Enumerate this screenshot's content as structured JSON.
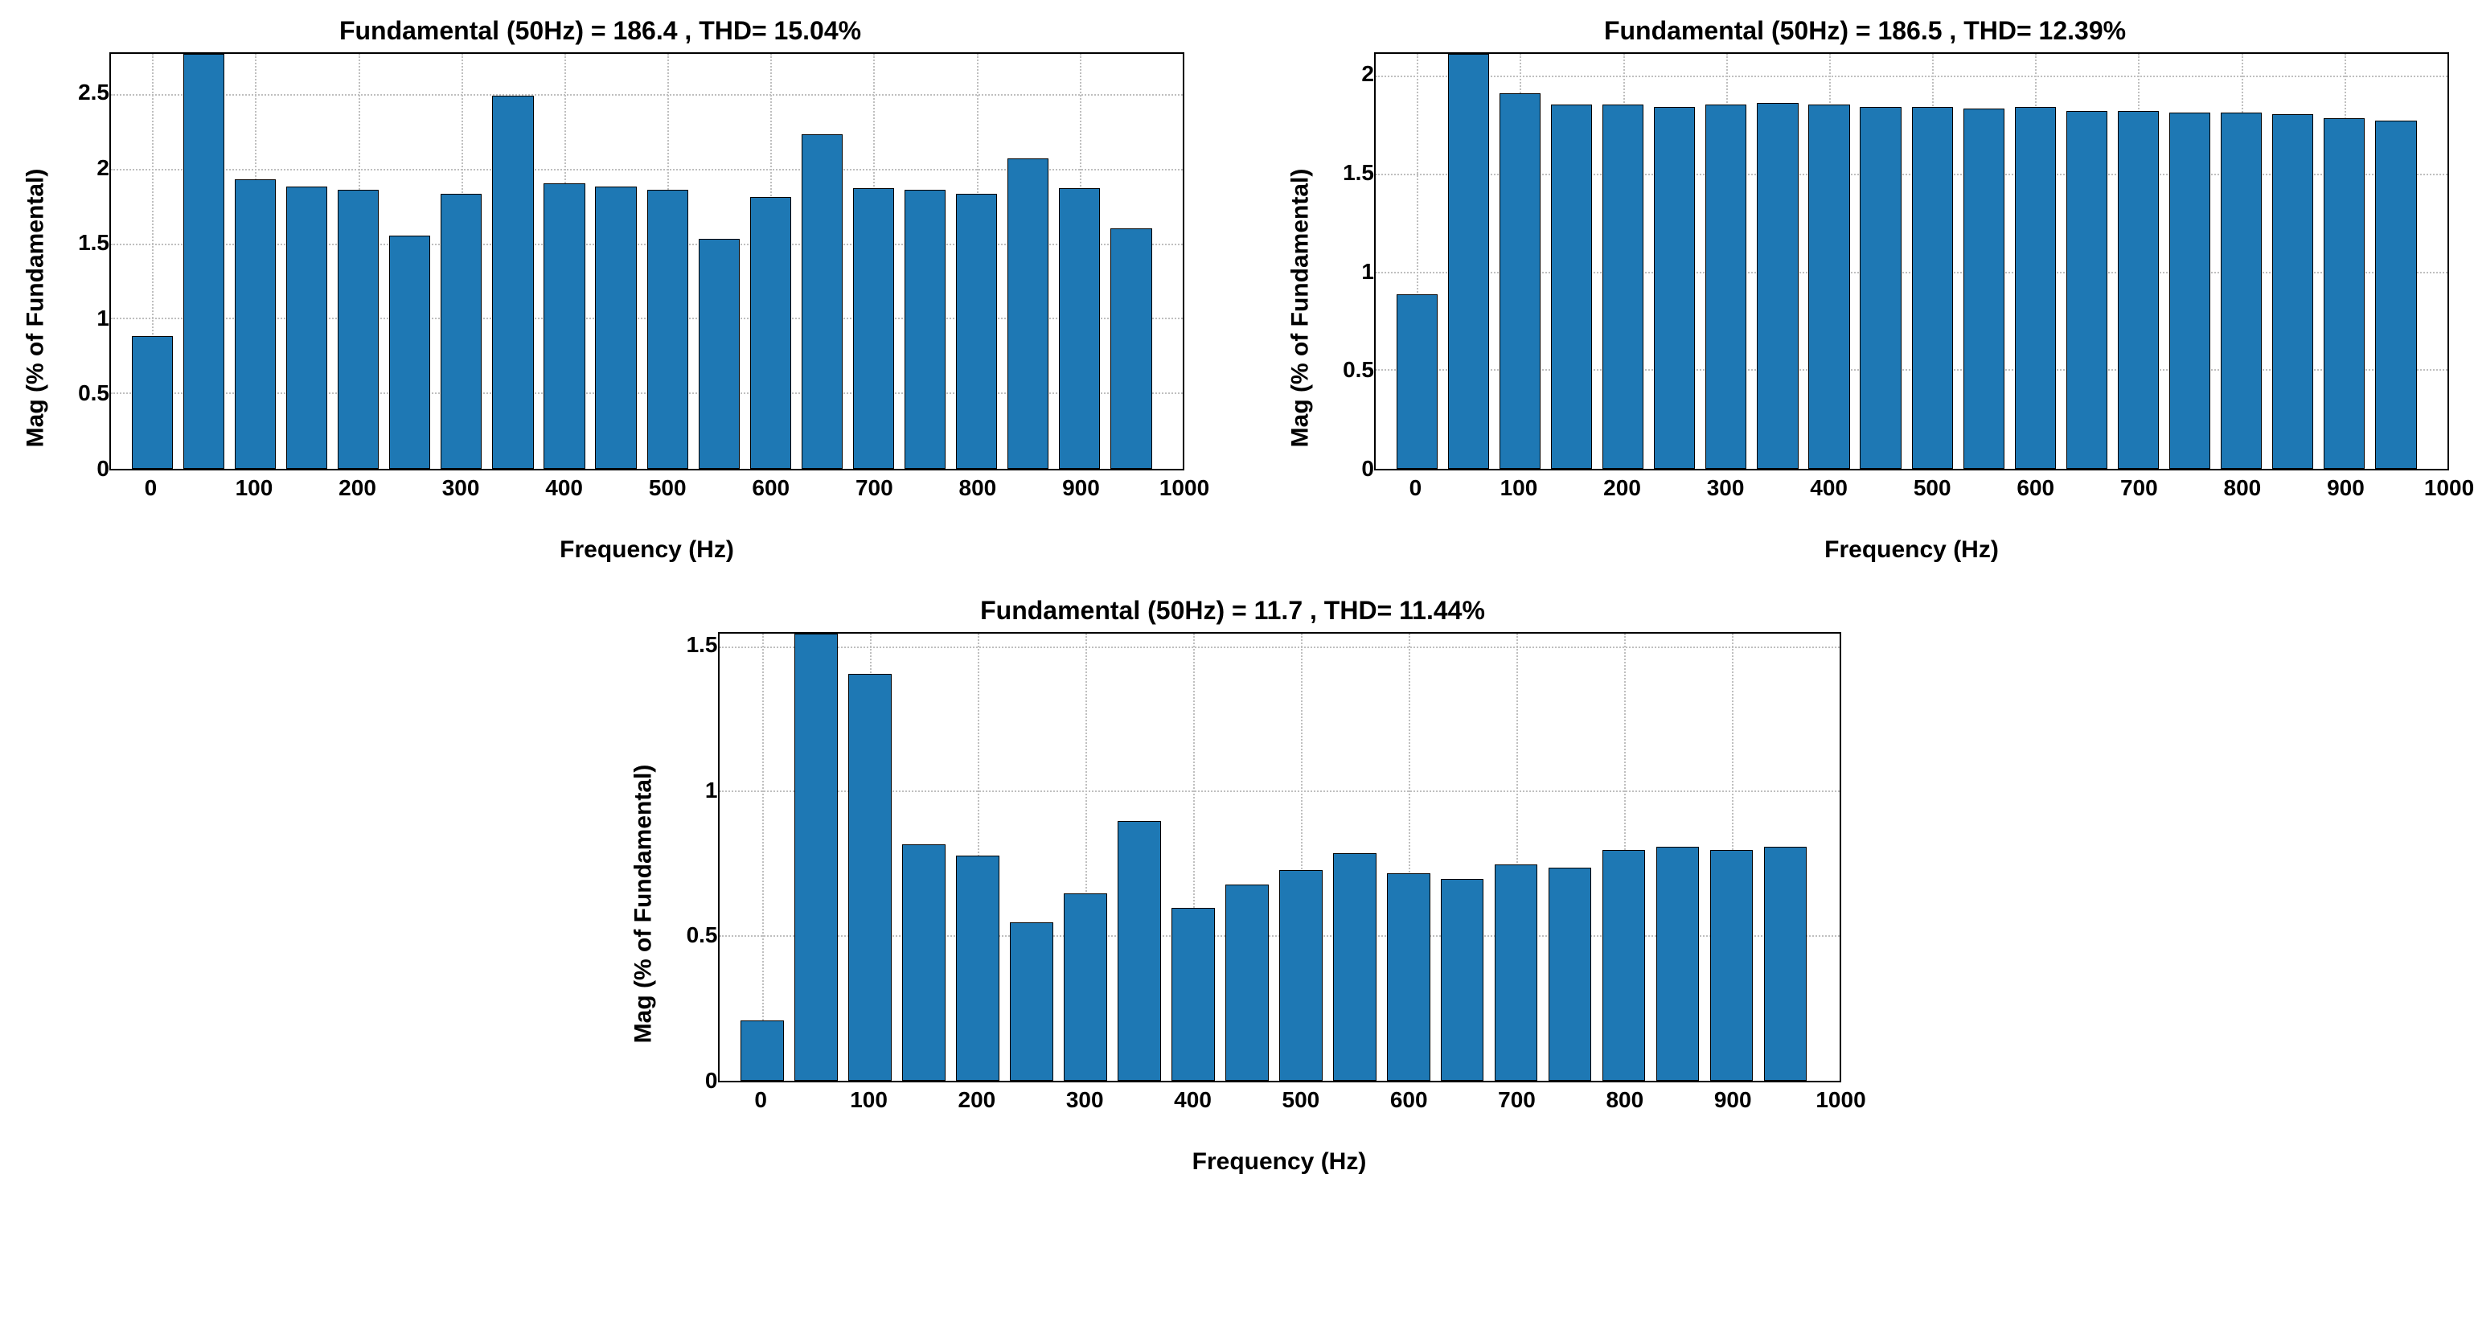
{
  "global": {
    "bar_color": "#1e78b4",
    "bar_edge_color": "#000000",
    "grid_color": "#bfbfbf",
    "background_color": "#ffffff",
    "axis_font_size": 28,
    "label_font_size": 30,
    "title_font_size": 32,
    "bar_rel_width": 0.8
  },
  "charts": [
    {
      "id": "chart1",
      "title": "Fundamental (50Hz) = 186.4 , THD= 15.04%",
      "xlabel": "Frequency (Hz)",
      "ylabel": "Mag (% of Fundamental)",
      "xlim": [
        -40,
        1000
      ],
      "xtick_step": 100,
      "xticks": [
        0,
        100,
        200,
        300,
        400,
        500,
        600,
        700,
        800,
        900,
        1000
      ],
      "ylim": [
        0,
        2.78
      ],
      "yticks": [
        0,
        0.5,
        1,
        1.5,
        2,
        2.5
      ],
      "ytick_labels": [
        "0",
        "0.5",
        "1",
        "1.5",
        "2",
        "2.5"
      ],
      "categories_hz": [
        0,
        50,
        100,
        150,
        200,
        250,
        300,
        350,
        400,
        450,
        500,
        550,
        600,
        650,
        700,
        750,
        800,
        850,
        900,
        950
      ],
      "values": [
        0.89,
        2.78,
        1.94,
        1.89,
        1.87,
        1.56,
        1.84,
        2.5,
        1.91,
        1.89,
        1.87,
        1.54,
        1.82,
        2.24,
        1.88,
        1.87,
        1.84,
        2.08,
        1.88,
        1.61
      ]
    },
    {
      "id": "chart2",
      "title": "Fundamental (50Hz) = 186.5 , THD= 12.39%",
      "xlabel": "Frequency (Hz)",
      "ylabel": "Mag (% of Fundamental)",
      "xlim": [
        -40,
        1000
      ],
      "xtick_step": 100,
      "xticks": [
        0,
        100,
        200,
        300,
        400,
        500,
        600,
        700,
        800,
        900,
        1000
      ],
      "ylim": [
        0,
        2.12
      ],
      "yticks": [
        0,
        0.5,
        1,
        1.5,
        2
      ],
      "ytick_labels": [
        "0",
        "0.5",
        "1",
        "1.5",
        "2"
      ],
      "categories_hz": [
        0,
        50,
        100,
        150,
        200,
        250,
        300,
        350,
        400,
        450,
        500,
        550,
        600,
        650,
        700,
        750,
        800,
        850,
        900,
        950
      ],
      "values": [
        0.89,
        2.12,
        1.92,
        1.86,
        1.86,
        1.85,
        1.86,
        1.87,
        1.86,
        1.85,
        1.85,
        1.84,
        1.85,
        1.83,
        1.83,
        1.82,
        1.82,
        1.81,
        1.79,
        1.78
      ]
    },
    {
      "id": "chart3",
      "title": "Fundamental (50Hz) = 11.7 , THD= 11.44%",
      "xlabel": "Frequency (Hz)",
      "ylabel": "Mag (% of Fundamental)",
      "xlim": [
        -40,
        1000
      ],
      "xtick_step": 100,
      "xticks": [
        0,
        100,
        200,
        300,
        400,
        500,
        600,
        700,
        800,
        900,
        1000
      ],
      "ylim": [
        0,
        1.55
      ],
      "yticks": [
        0,
        0.5,
        1,
        1.5
      ],
      "ytick_labels": [
        "0",
        "0.5",
        "1",
        "1.5"
      ],
      "categories_hz": [
        0,
        50,
        100,
        150,
        200,
        250,
        300,
        350,
        400,
        450,
        500,
        550,
        600,
        650,
        700,
        750,
        800,
        850,
        900,
        950
      ],
      "values": [
        0.21,
        1.55,
        1.41,
        0.82,
        0.78,
        0.55,
        0.65,
        0.9,
        0.6,
        0.68,
        0.73,
        0.79,
        0.72,
        0.7,
        0.75,
        0.74,
        0.8,
        0.81,
        0.8,
        0.81
      ]
    }
  ]
}
